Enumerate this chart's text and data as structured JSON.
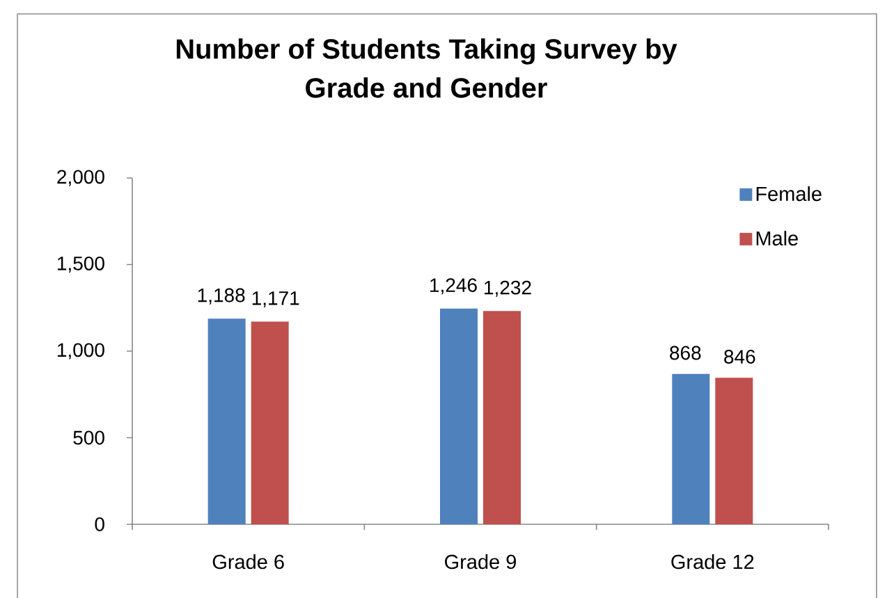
{
  "chart_data": {
    "type": "bar",
    "title": "Number of Students Taking Survey by Grade and Gender",
    "categories": [
      "Grade 6",
      "Grade 9",
      "Grade 12"
    ],
    "series": [
      {
        "name": "Female",
        "color": "#4f81bd",
        "values": [
          1188,
          1246,
          868
        ],
        "value_labels": [
          "1,188",
          "1,246",
          "868"
        ]
      },
      {
        "name": "Male",
        "color": "#c0504d",
        "values": [
          1171,
          1232,
          846
        ],
        "value_labels": [
          "1,171",
          "1,232",
          "846"
        ]
      }
    ],
    "ylim": [
      0,
      2000
    ],
    "yticks": [
      0,
      500,
      {
        "value": 1000,
        "label": "1,000"
      },
      {
        "value": 1500,
        "label": "1,500"
      },
      {
        "value": 2000,
        "label": "2,000"
      }
    ],
    "legend": "top right"
  }
}
